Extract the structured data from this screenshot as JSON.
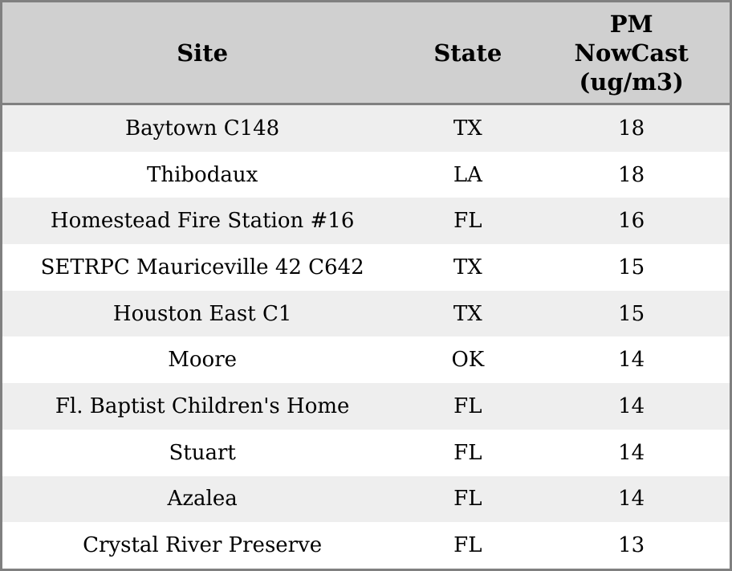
{
  "table": {
    "header": {
      "site": "Site",
      "state": "State",
      "pm": "PM\nNowCast\n(ug/m3)"
    },
    "rows": [
      {
        "site": "Baytown C148",
        "state": "TX",
        "pm": "18"
      },
      {
        "site": "Thibodaux",
        "state": "LA",
        "pm": "18"
      },
      {
        "site": "Homestead Fire Station #16",
        "state": "FL",
        "pm": "16"
      },
      {
        "site": "SETRPC Mauriceville 42 C642",
        "state": "TX",
        "pm": "15"
      },
      {
        "site": "Houston East C1",
        "state": "TX",
        "pm": "15"
      },
      {
        "site": "Moore",
        "state": "OK",
        "pm": "14"
      },
      {
        "site": "Fl. Baptist Children's Home",
        "state": "FL",
        "pm": "14"
      },
      {
        "site": "Stuart",
        "state": "FL",
        "pm": "14"
      },
      {
        "site": "Azalea",
        "state": "FL",
        "pm": "14"
      },
      {
        "site": "Crystal River Preserve",
        "state": "FL",
        "pm": "13"
      }
    ]
  },
  "colors": {
    "outer_border": "#808080",
    "header_background": "#d0d0d0",
    "row_stripe": "#eeeeee",
    "row_plain": "#ffffff",
    "text": "#000000"
  },
  "chart_data": {
    "type": "table",
    "title": "",
    "columns": [
      "Site",
      "State",
      "PM NowCast (ug/m3)"
    ],
    "rows": [
      [
        "Baytown C148",
        "TX",
        18
      ],
      [
        "Thibodaux",
        "LA",
        18
      ],
      [
        "Homestead Fire Station #16",
        "FL",
        16
      ],
      [
        "SETRPC Mauriceville 42 C642",
        "TX",
        15
      ],
      [
        "Houston East C1",
        "TX",
        15
      ],
      [
        "Moore",
        "OK",
        14
      ],
      [
        "Fl. Baptist Children's Home",
        "FL",
        14
      ],
      [
        "Stuart",
        "FL",
        14
      ],
      [
        "Azalea",
        "FL",
        14
      ],
      [
        "Crystal River Preserve",
        "FL",
        13
      ]
    ],
    "layout": {
      "striped_rows": true,
      "header_position": "top",
      "value_unit": "ug/m3"
    }
  }
}
